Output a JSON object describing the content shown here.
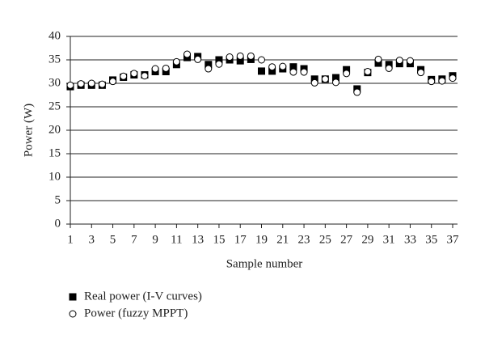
{
  "chart_data": {
    "type": "scatter",
    "x_label": "Sample number",
    "y_label": "Power (W)",
    "x": [
      1,
      2,
      3,
      4,
      5,
      6,
      7,
      8,
      9,
      10,
      11,
      12,
      13,
      14,
      15,
      16,
      17,
      18,
      19,
      20,
      21,
      22,
      23,
      24,
      25,
      26,
      27,
      28,
      29,
      30,
      31,
      32,
      33,
      34,
      35,
      36,
      37
    ],
    "series": [
      {
        "name": "Real power (I-V curves)",
        "color": "#000000",
        "marker": "square",
        "values": [
          29.3,
          29.6,
          29.6,
          29.6,
          30.7,
          31.3,
          31.8,
          31.8,
          32.5,
          32.5,
          34,
          35.5,
          35.7,
          34,
          35,
          35,
          34.8,
          35.1,
          32.6,
          32.6,
          33.1,
          33.5,
          33.1,
          30.9,
          30.9,
          31.2,
          32.9,
          28.8,
          32.3,
          34.3,
          34,
          34.2,
          34.2,
          32.9,
          30.8,
          30.9,
          31.6
        ]
      },
      {
        "name": "Power (fuzzy MPPT)",
        "color": "#ffffff",
        "marker": "circle",
        "values": [
          29.6,
          29.9,
          30,
          29.8,
          30.4,
          31.5,
          32.1,
          31.6,
          33.1,
          33.2,
          34.6,
          36.2,
          35.1,
          33.1,
          34.1,
          35.6,
          35.8,
          35.8,
          35,
          33.5,
          33.6,
          32.4,
          32.4,
          30.1,
          30.9,
          30.2,
          32.1,
          28.1,
          32.5,
          35.1,
          33.2,
          34.9,
          34.8,
          32.3,
          30.4,
          30.5,
          31.1
        ]
      }
    ],
    "xlim": [
      1,
      37
    ],
    "xticks": [
      1,
      3,
      5,
      7,
      9,
      11,
      13,
      15,
      17,
      19,
      21,
      23,
      25,
      27,
      29,
      31,
      33,
      35,
      37
    ],
    "ylim": [
      0,
      40
    ],
    "yticks": [
      0,
      5,
      10,
      15,
      20,
      25,
      30,
      35,
      40
    ],
    "grid": true,
    "legend": "bottom-left"
  }
}
